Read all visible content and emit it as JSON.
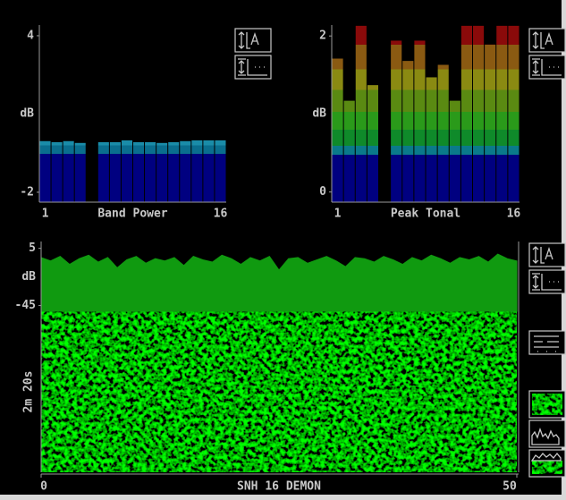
{
  "chart_data": [
    {
      "type": "bar",
      "xlabel": "Band Power",
      "ylabel": "dB",
      "x": [
        1,
        2,
        3,
        4,
        5,
        6,
        7,
        8,
        9,
        10,
        11,
        12,
        13,
        14,
        15,
        16
      ],
      "values": [
        -0.04,
        -0.08,
        -0.04,
        -0.11,
        null,
        -0.08,
        -0.08,
        -0.01,
        -0.08,
        -0.08,
        -0.11,
        -0.08,
        -0.04,
        -0.01,
        -0.01,
        -0.01
      ],
      "xlim": [
        0.5,
        16.5
      ],
      "xticks": [
        1,
        16
      ],
      "ylim": [
        -2.38,
        4.41
      ],
      "yticks": [
        4,
        -2
      ],
      "color_bands": [
        {
          "to": -0.53,
          "color": "#000080"
        },
        {
          "to": -0.2,
          "color": "#0a6e8e"
        },
        {
          "to": 4.41,
          "color": "#1a8ca8"
        }
      ]
    },
    {
      "type": "bar",
      "xlabel": "Peak Tonal",
      "ylabel": "dB",
      "x": [
        1,
        2,
        3,
        4,
        5,
        6,
        7,
        8,
        9,
        10,
        11,
        12,
        13,
        14,
        15,
        16
      ],
      "values": [
        1.71,
        1.17,
        2.13,
        1.37,
        null,
        1.94,
        1.68,
        1.94,
        1.47,
        1.63,
        1.17,
        2.13,
        2.13,
        1.89,
        2.13,
        2.13
      ],
      "xlim": [
        0.5,
        16.5
      ],
      "xticks": [
        1,
        16
      ],
      "ylim": [
        -0.13,
        2.14
      ],
      "yticks": [
        2,
        0
      ],
      "color_bands": [
        {
          "to": 0.48,
          "color": "#000080"
        },
        {
          "to": 0.59,
          "color": "#0a7a8a"
        },
        {
          "to": 0.8,
          "color": "#0f8a2a"
        },
        {
          "to": 1.03,
          "color": "#2a9a1a"
        },
        {
          "to": 1.31,
          "color": "#5a8a12"
        },
        {
          "to": 1.57,
          "color": "#8a8a12"
        },
        {
          "to": 1.89,
          "color": "#8a5a12"
        },
        {
          "to": 2.14,
          "color": "#8a0a0a"
        }
      ]
    },
    {
      "type": "line",
      "xlabel": "SNH 16 DEMON",
      "ylabel": "dB",
      "time_label": "2m 20s",
      "x": [
        0,
        1,
        2,
        3,
        4,
        5,
        6,
        7,
        8,
        9,
        10,
        11,
        12,
        13,
        14,
        15,
        16,
        17,
        18,
        19,
        20,
        21,
        22,
        23,
        24,
        25,
        26,
        27,
        28,
        29,
        30,
        31,
        32,
        33,
        34,
        35,
        36,
        37,
        38,
        39,
        40,
        41,
        42,
        43,
        44,
        45,
        46,
        47,
        48,
        49,
        50
      ],
      "values": [
        -3,
        -6,
        -2,
        -9,
        -4,
        -1,
        -7,
        -3,
        -12,
        -5,
        -2,
        -8,
        -4,
        -6,
        -3,
        -10,
        -2,
        -5,
        -7,
        -1,
        -4,
        -9,
        -3,
        -6,
        -2,
        -14,
        -4,
        -3,
        -8,
        -5,
        -2,
        -6,
        -11,
        -3,
        -4,
        -7,
        -2,
        -5,
        -9,
        -3,
        -6,
        -1,
        -4,
        -8,
        -3,
        -5,
        -2,
        -7,
        0,
        -4,
        -6
      ],
      "color": "#109a10",
      "xlim": [
        0,
        50
      ],
      "xticks": [
        0,
        50
      ],
      "ylim": [
        -50,
        11
      ],
      "yticks": [
        5,
        -45
      ]
    }
  ]
}
